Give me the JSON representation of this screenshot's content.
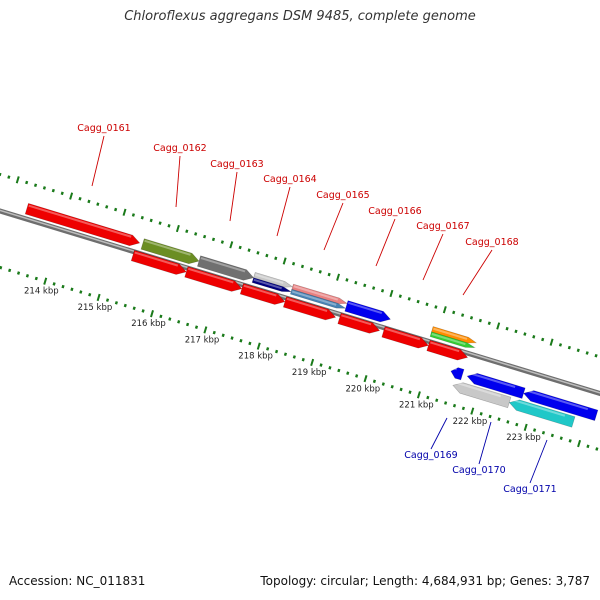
{
  "title": "Chloroflexus aggregans DSM 9485, complete genome",
  "footer": {
    "accession": "Accession: NC_011831",
    "summary": "Topology: circular; Length: 4,684,931 bp; Genes: 3,787"
  },
  "scale_labels": [
    "214 kbp",
    "215 kbp",
    "216 kbp",
    "217 kbp",
    "218 kbp",
    "219 kbp",
    "220 kbp",
    "221 kbp",
    "222 kbp",
    "223 kbp"
  ],
  "colors": {
    "forward_label": "#cc0000",
    "reverse_label": "#0000aa",
    "backbone": "#8a8a8a",
    "tick": "#1a7a1a",
    "red": "#ee0000",
    "olive": "#6b8e23",
    "gray": "#707070",
    "silver": "#c8c8c8",
    "navy": "#000080",
    "salmon": "#e88080",
    "steelblue": "#4682b4",
    "blue": "#0000ee",
    "orange": "#ff8c00",
    "green": "#33cc33",
    "cyan": "#20c8c8"
  },
  "forward_labels": [
    "Cagg_0161",
    "Cagg_0162",
    "Cagg_0163",
    "Cagg_0164",
    "Cagg_0165",
    "Cagg_0166",
    "Cagg_0167",
    "Cagg_0168"
  ],
  "reverse_labels": [
    "Cagg_0169",
    "Cagg_0170",
    "Cagg_0171"
  ]
}
